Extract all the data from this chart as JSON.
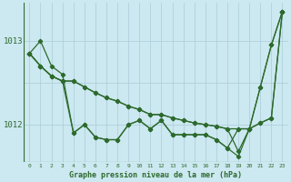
{
  "title": "Graphe pression niveau de la mer (hPa)",
  "background_color": "#cce8f0",
  "line_color": "#2d6a2d",
  "grid_color": "#aaccd8",
  "x_ticks": [
    0,
    1,
    2,
    3,
    4,
    5,
    6,
    7,
    8,
    9,
    10,
    11,
    12,
    13,
    14,
    15,
    16,
    17,
    18,
    19,
    20,
    21,
    22,
    23
  ],
  "y_ticks": [
    1012,
    1013
  ],
  "ylim": [
    1011.55,
    1013.45
  ],
  "xlim": [
    -0.5,
    23.5
  ],
  "series": [
    [
      1012.85,
      1013.0,
      1012.7,
      1012.6,
      1011.9,
      1012.0,
      1011.85,
      1011.82,
      1011.82,
      1012.0,
      1012.05,
      1011.95,
      1012.05,
      1011.88,
      1011.88,
      1011.88,
      1011.88,
      1011.82,
      1011.72,
      1011.95,
      1011.95,
      1012.45,
      1012.95,
      1013.35
    ],
    [
      1012.85,
      1012.7,
      1012.58,
      1012.52,
      1012.52,
      1012.45,
      1012.38,
      1012.32,
      1012.28,
      1012.22,
      1012.18,
      1012.12,
      1012.12,
      1012.08,
      1012.05,
      1012.02,
      1012.0,
      1011.98,
      1011.95,
      1011.95,
      1011.95,
      1012.02,
      1012.08,
      1013.35
    ],
    [
      1012.85,
      1012.7,
      1012.58,
      1012.52,
      1012.52,
      1012.45,
      1012.38,
      1012.32,
      1012.28,
      1012.22,
      1012.18,
      1012.12,
      1012.12,
      1012.08,
      1012.05,
      1012.02,
      1012.0,
      1011.98,
      1011.95,
      1011.68,
      1011.95,
      1012.45,
      1012.95,
      1013.35
    ],
    [
      1012.85,
      1012.7,
      1012.58,
      1012.52,
      1011.9,
      1012.0,
      1011.85,
      1011.82,
      1011.82,
      1012.0,
      1012.05,
      1011.95,
      1012.05,
      1011.88,
      1011.88,
      1011.88,
      1011.88,
      1011.82,
      1011.72,
      1011.62,
      1011.95,
      1012.02,
      1012.08,
      1013.35
    ]
  ]
}
